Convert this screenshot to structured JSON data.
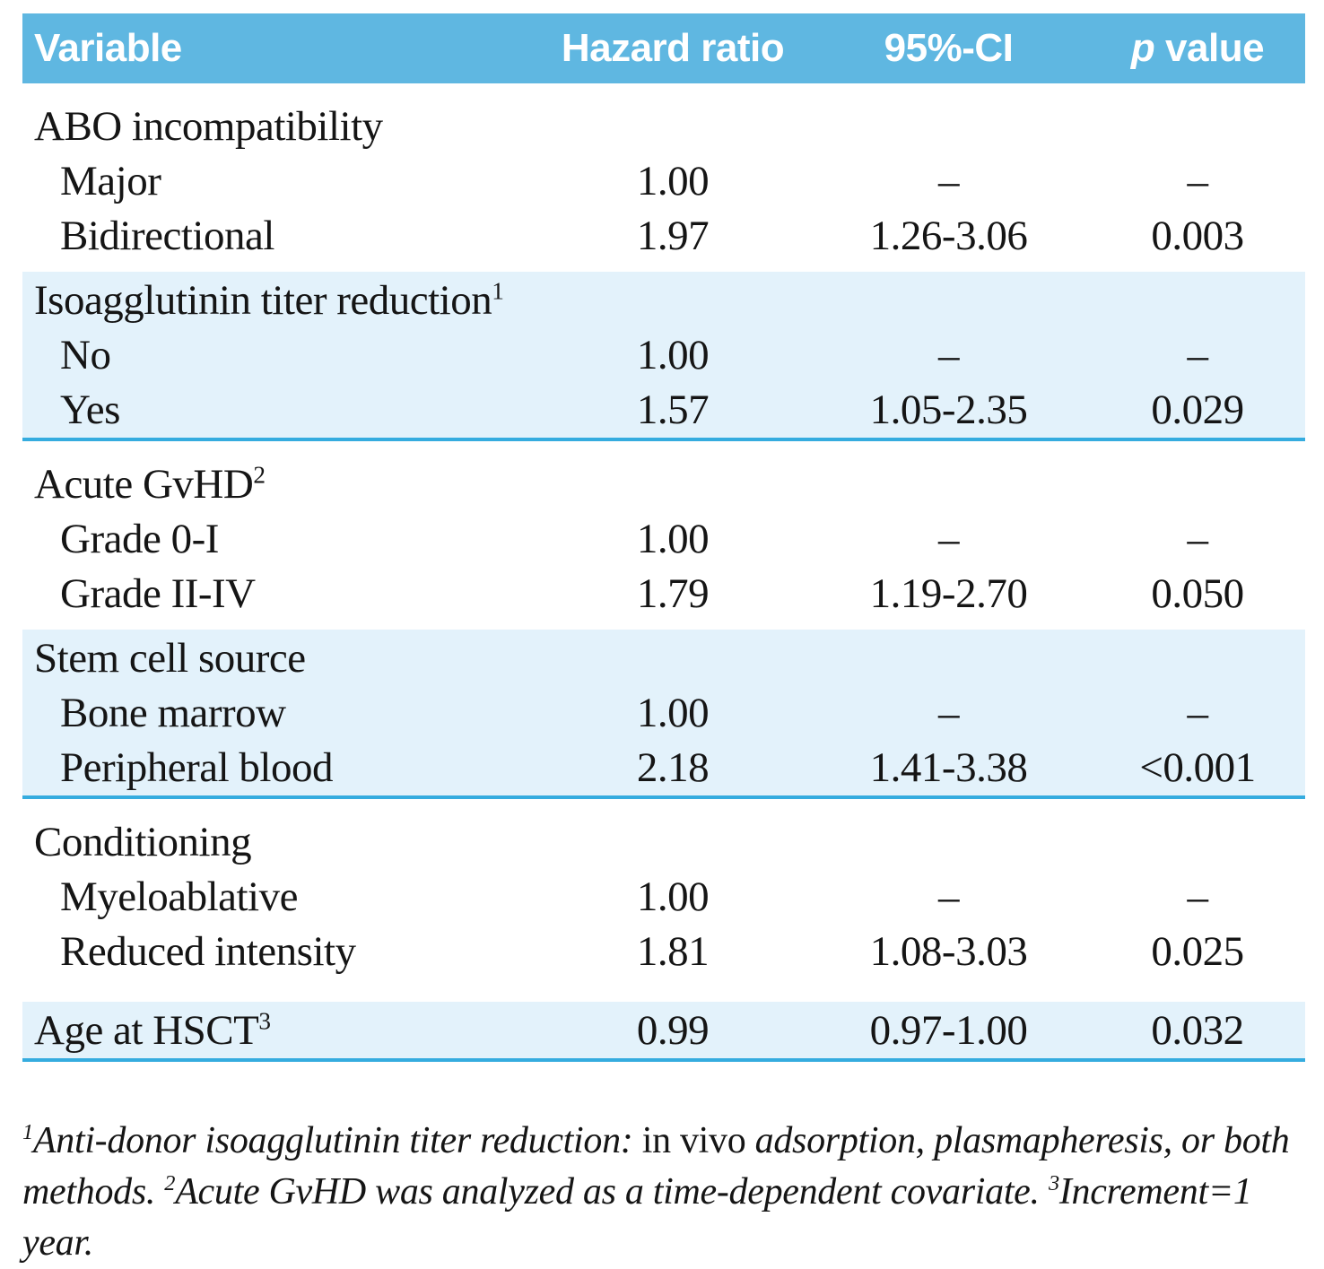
{
  "colors": {
    "header_bg": "#5fb7e1",
    "shaded_row_bg": "#e3f2fb",
    "divider_blue": "#35acdf",
    "header_text": "#ffffff",
    "body_text": "#151515"
  },
  "header": {
    "variable": "Variable",
    "hazard": "Hazard ratio",
    "ci": "95%-CI",
    "p_italic": "p",
    "p_rest": " value"
  },
  "groups": [
    {
      "title": "ABO incompatibility",
      "sup": "",
      "items": [
        {
          "label": "Major",
          "hr": "1.00",
          "ci": "–",
          "p": "–"
        },
        {
          "label": "Bidirectional",
          "hr": "1.97",
          "ci": "1.26-3.06",
          "p": "0.003"
        }
      ]
    },
    {
      "title": "Isoagglutinin titer reduction",
      "sup": "1",
      "items": [
        {
          "label": "No",
          "hr": "1.00",
          "ci": "–",
          "p": "–"
        },
        {
          "label": "Yes",
          "hr": "1.57",
          "ci": "1.05-2.35",
          "p": "0.029"
        }
      ]
    },
    {
      "title": "Acute GvHD",
      "sup": "2",
      "items": [
        {
          "label": "Grade 0-I",
          "hr": "1.00",
          "ci": "–",
          "p": "–"
        },
        {
          "label": "Grade II-IV",
          "hr": "1.79",
          "ci": "1.19-2.70",
          "p": "0.050"
        }
      ]
    },
    {
      "title": "Stem cell source",
      "sup": "",
      "items": [
        {
          "label": "Bone marrow",
          "hr": "1.00",
          "ci": "–",
          "p": "–"
        },
        {
          "label": "Peripheral blood",
          "hr": "2.18",
          "ci": "1.41-3.38",
          "p": "<0.001"
        }
      ]
    },
    {
      "title": "Conditioning",
      "sup": "",
      "items": [
        {
          "label": "Myeloablative",
          "hr": "1.00",
          "ci": "–",
          "p": "–"
        },
        {
          "label": "Reduced intensity",
          "hr": "1.81",
          "ci": "1.08-3.03",
          "p": "0.025"
        }
      ]
    }
  ],
  "summary_row": {
    "title": "Age at HSCT",
    "sup": "3",
    "hr": "0.99",
    "ci": "0.97-1.00",
    "p": "0.032"
  },
  "footnote": {
    "sup1": "1",
    "seg1_italic": "Anti-donor isoagglutinin titer reduction:",
    "seg1_roman": "in vivo",
    "seg1_italic2": "adsorption, plasmapheresis, or both methods.",
    "sup2": "2",
    "seg2_italic": "Acute GvHD was analyzed as a time-dependent covariate.",
    "sup3": "3",
    "seg3_italic": "Increment=1 year."
  }
}
